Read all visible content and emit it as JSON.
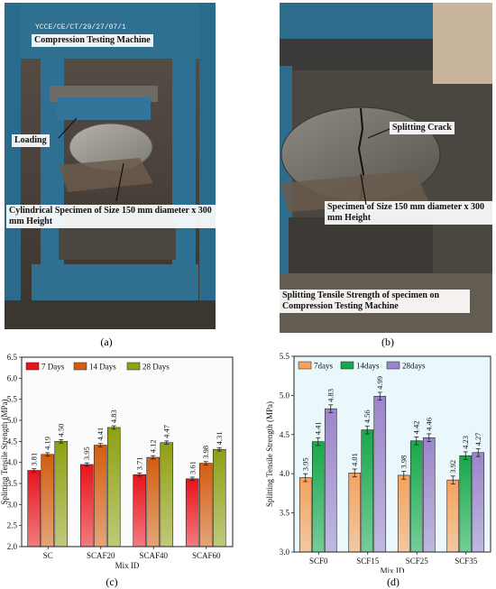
{
  "panels": {
    "a": {
      "caption": "(a)",
      "labels": {
        "machine": "Compression Testing Machine",
        "loading": "Loading",
        "specimen": "Cylindrical Specimen of Size 150 mm diameter x 300 mm Height",
        "stamp": "YCCE/CE/CT/29/27/07/1"
      }
    },
    "b": {
      "caption": "(b)",
      "labels": {
        "crack": "Splitting Crack",
        "specimen": "Specimen of Size 150 mm diameter x 300 mm Height",
        "strength": "Splitting Tensile Strength of specimen on Compression Testing Machine"
      }
    },
    "c": {
      "caption": "(c)"
    },
    "d": {
      "caption": "(d)"
    }
  },
  "colors": {
    "c_series": [
      "#e8131b",
      "#d35d0f",
      "#8fa012"
    ],
    "d_series": [
      "#f5a25c",
      "#18a84a",
      "#9b85c9"
    ],
    "plot_bg_c": "#fbfbfb",
    "plot_bg_d": "#ebf8fb"
  },
  "chart_data": [
    {
      "type": "bar",
      "categories": [
        "SC",
        "SCAF20",
        "SCAF40",
        "SCAF60"
      ],
      "series": [
        {
          "name": "7 Days",
          "values": [
            3.81,
            3.95,
            3.71,
            3.61
          ]
        },
        {
          "name": "14 Days",
          "values": [
            4.19,
            4.41,
            4.12,
            3.98
          ]
        },
        {
          "name": "28 Days",
          "values": [
            4.5,
            4.83,
            4.47,
            4.31
          ]
        }
      ],
      "data_labels": [
        [
          "3.81",
          "3.95",
          "3.71",
          "3.61"
        ],
        [
          "4.19",
          "4.41",
          "4.12",
          "3.98"
        ],
        [
          "4.50",
          "4.83",
          "4.47",
          "4.31"
        ]
      ],
      "xlabel": "Mix ID",
      "ylabel": "Splitting Tensile Strength (MPa)",
      "ylim": [
        2.0,
        6.5
      ],
      "yticks": [
        "2.0",
        "2.5",
        "3.0",
        "3.5",
        "4.0",
        "4.5",
        "5.0",
        "5.5",
        "6.0",
        "6.5"
      ],
      "error_bars": true,
      "legend": "top-left",
      "grid": false
    },
    {
      "type": "bar",
      "categories": [
        "SCF0",
        "SCF15",
        "SCF25",
        "SCF35"
      ],
      "series": [
        {
          "name": "7days",
          "values": [
            3.95,
            4.01,
            3.98,
            3.92
          ]
        },
        {
          "name": "14days",
          "values": [
            4.41,
            4.56,
            4.42,
            4.23
          ]
        },
        {
          "name": "28days",
          "values": [
            4.83,
            4.99,
            4.46,
            4.27
          ]
        }
      ],
      "data_labels": [
        [
          "3.95",
          "4.01",
          "3.98",
          "3.92"
        ],
        [
          "4.41",
          "4.56",
          "4.42",
          "4.23"
        ],
        [
          "4.83",
          "4.99",
          "4.46",
          "4.27"
        ]
      ],
      "xlabel": "Mix ID",
      "ylabel": "Splitting Tensile Strength (MPa)",
      "ylim": [
        3.0,
        5.5
      ],
      "yticks": [
        "3.0",
        "3.5",
        "4.0",
        "4.5",
        "5.0",
        "5.5"
      ],
      "error_bars": true,
      "legend": "top-left",
      "grid": false
    }
  ]
}
